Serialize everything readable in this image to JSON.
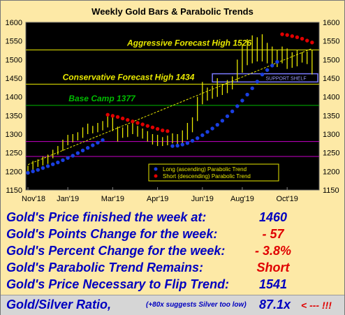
{
  "chart_data": {
    "type": "line",
    "title": "Weekly Gold Bars & Parabolic Trends",
    "ylim": [
      1150,
      1600
    ],
    "yticks": [
      1150,
      1200,
      1250,
      1300,
      1350,
      1400,
      1450,
      1500,
      1550,
      1600
    ],
    "ytick_labels": [
      "1150",
      "1200",
      "1250",
      "1300",
      "1350",
      "1400",
      "1450",
      "1500",
      "1550",
      "1600"
    ],
    "x_tick_labels": [
      "Nov'18",
      "Jan'19",
      "Mar'19",
      "Apr'19",
      "Jun'19",
      "Aug'19",
      "Oct'19"
    ],
    "x_tick_weeks": [
      0,
      8,
      17,
      26,
      35,
      43,
      52
    ],
    "levels": [
      {
        "name": "Aggressive Forecast High 1526",
        "value": 1526,
        "color": "#e8e800"
      },
      {
        "name": "Conservative Forecast High 1434",
        "value": 1434,
        "color": "#e8e800"
      },
      {
        "name": "Base Camp 1377",
        "value": 1377,
        "color": "#00bb00"
      },
      {
        "name": "",
        "value": 1280,
        "color": "#c800c8"
      },
      {
        "name": "",
        "value": 1240,
        "color": "#c800c8"
      }
    ],
    "support_shelf": {
      "label": "SUPPORT SHELF",
      "low": 1440,
      "high": 1462
    },
    "bars": [
      {
        "week": 0,
        "high": 1215,
        "low": 1196
      },
      {
        "week": 1,
        "high": 1228,
        "low": 1204
      },
      {
        "week": 2,
        "high": 1232,
        "low": 1212
      },
      {
        "week": 3,
        "high": 1240,
        "low": 1216
      },
      {
        "week": 4,
        "high": 1245,
        "low": 1220
      },
      {
        "week": 5,
        "high": 1258,
        "low": 1235
      },
      {
        "week": 6,
        "high": 1268,
        "low": 1245
      },
      {
        "week": 7,
        "high": 1285,
        "low": 1255
      },
      {
        "week": 8,
        "high": 1298,
        "low": 1270
      },
      {
        "week": 9,
        "high": 1300,
        "low": 1278
      },
      {
        "week": 10,
        "high": 1305,
        "low": 1283
      },
      {
        "week": 11,
        "high": 1318,
        "low": 1290
      },
      {
        "week": 12,
        "high": 1328,
        "low": 1300
      },
      {
        "week": 13,
        "high": 1322,
        "low": 1302
      },
      {
        "week": 14,
        "high": 1330,
        "low": 1305
      },
      {
        "week": 15,
        "high": 1335,
        "low": 1310
      },
      {
        "week": 16,
        "high": 1352,
        "low": 1318
      },
      {
        "week": 17,
        "high": 1345,
        "low": 1308
      },
      {
        "week": 18,
        "high": 1320,
        "low": 1280
      },
      {
        "week": 19,
        "high": 1318,
        "low": 1290
      },
      {
        "week": 20,
        "high": 1325,
        "low": 1292
      },
      {
        "week": 21,
        "high": 1330,
        "low": 1300
      },
      {
        "week": 22,
        "high": 1322,
        "low": 1293
      },
      {
        "week": 23,
        "high": 1315,
        "low": 1288
      },
      {
        "week": 24,
        "high": 1308,
        "low": 1280
      },
      {
        "week": 25,
        "high": 1300,
        "low": 1272
      },
      {
        "week": 26,
        "high": 1298,
        "low": 1268
      },
      {
        "week": 27,
        "high": 1292,
        "low": 1268
      },
      {
        "week": 28,
        "high": 1296,
        "low": 1270
      },
      {
        "week": 29,
        "high": 1302,
        "low": 1275
      },
      {
        "week": 30,
        "high": 1300,
        "low": 1268
      },
      {
        "week": 31,
        "high": 1310,
        "low": 1275
      },
      {
        "week": 32,
        "high": 1330,
        "low": 1285
      },
      {
        "week": 33,
        "high": 1345,
        "low": 1305
      },
      {
        "week": 34,
        "high": 1400,
        "low": 1335
      },
      {
        "week": 35,
        "high": 1440,
        "low": 1380
      },
      {
        "week": 36,
        "high": 1425,
        "low": 1390
      },
      {
        "week": 37,
        "high": 1430,
        "low": 1395
      },
      {
        "week": 38,
        "high": 1450,
        "low": 1400
      },
      {
        "week": 39,
        "high": 1435,
        "low": 1405
      },
      {
        "week": 40,
        "high": 1445,
        "low": 1410
      },
      {
        "week": 41,
        "high": 1455,
        "low": 1420
      },
      {
        "week": 42,
        "high": 1500,
        "low": 1440
      },
      {
        "week": 43,
        "high": 1540,
        "low": 1465
      },
      {
        "week": 44,
        "high": 1555,
        "low": 1485
      },
      {
        "week": 45,
        "high": 1565,
        "low": 1490
      },
      {
        "week": 46,
        "high": 1560,
        "low": 1495
      },
      {
        "week": 47,
        "high": 1568,
        "low": 1495
      },
      {
        "week": 48,
        "high": 1545,
        "low": 1490
      },
      {
        "week": 49,
        "high": 1535,
        "low": 1488
      },
      {
        "week": 50,
        "high": 1525,
        "low": 1480
      },
      {
        "week": 51,
        "high": 1535,
        "low": 1490
      },
      {
        "week": 52,
        "high": 1530,
        "low": 1475
      },
      {
        "week": 53,
        "high": 1520,
        "low": 1478
      },
      {
        "week": 54,
        "high": 1525,
        "low": 1482
      },
      {
        "week": 55,
        "high": 1520,
        "low": 1492
      },
      {
        "week": 56,
        "high": 1522,
        "low": 1488
      },
      {
        "week": 57,
        "high": 1525,
        "low": 1460
      }
    ],
    "trendline": [
      {
        "week": 0,
        "value": 1218
      },
      {
        "week": 57,
        "value": 1530
      }
    ],
    "series": [
      {
        "name": "Long (ascending) Parabolic Trend",
        "color": "#1a3fe0",
        "points": [
          {
            "week": 0,
            "value": 1196
          },
          {
            "week": 1,
            "value": 1200
          },
          {
            "week": 2,
            "value": 1204
          },
          {
            "week": 3,
            "value": 1209
          },
          {
            "week": 4,
            "value": 1214
          },
          {
            "week": 5,
            "value": 1219
          },
          {
            "week": 6,
            "value": 1224
          },
          {
            "week": 7,
            "value": 1230
          },
          {
            "week": 8,
            "value": 1236
          },
          {
            "week": 9,
            "value": 1242
          },
          {
            "week": 10,
            "value": 1249
          },
          {
            "week": 11,
            "value": 1256
          },
          {
            "week": 12,
            "value": 1263
          },
          {
            "week": 13,
            "value": 1270
          },
          {
            "week": 14,
            "value": 1277
          },
          {
            "week": 15,
            "value": 1284
          },
          {
            "week": 29,
            "value": 1268
          },
          {
            "week": 30,
            "value": 1269
          },
          {
            "week": 31,
            "value": 1272
          },
          {
            "week": 32,
            "value": 1276
          },
          {
            "week": 33,
            "value": 1282
          },
          {
            "week": 34,
            "value": 1289
          },
          {
            "week": 35,
            "value": 1297
          },
          {
            "week": 36,
            "value": 1306
          },
          {
            "week": 37,
            "value": 1315
          },
          {
            "week": 38,
            "value": 1325
          },
          {
            "week": 39,
            "value": 1336
          },
          {
            "week": 40,
            "value": 1348
          },
          {
            "week": 41,
            "value": 1361
          },
          {
            "week": 42,
            "value": 1375
          },
          {
            "week": 43,
            "value": 1390
          },
          {
            "week": 44,
            "value": 1406
          },
          {
            "week": 45,
            "value": 1423
          },
          {
            "week": 46,
            "value": 1441
          },
          {
            "week": 47,
            "value": 1460
          },
          {
            "week": 48,
            "value": 1472
          },
          {
            "week": 49,
            "value": 1484
          },
          {
            "week": 50,
            "value": 1494
          }
        ]
      },
      {
        "name": "Short (descending) Parabolic Trend",
        "color": "#e00000",
        "points": [
          {
            "week": 16,
            "value": 1352
          },
          {
            "week": 17,
            "value": 1349
          },
          {
            "week": 18,
            "value": 1346
          },
          {
            "week": 19,
            "value": 1342
          },
          {
            "week": 20,
            "value": 1338
          },
          {
            "week": 21,
            "value": 1334
          },
          {
            "week": 22,
            "value": 1330
          },
          {
            "week": 23,
            "value": 1326
          },
          {
            "week": 24,
            "value": 1322
          },
          {
            "week": 25,
            "value": 1318
          },
          {
            "week": 26,
            "value": 1314
          },
          {
            "week": 27,
            "value": 1310
          },
          {
            "week": 28,
            "value": 1308
          },
          {
            "week": 51,
            "value": 1568
          },
          {
            "week": 52,
            "value": 1566
          },
          {
            "week": 53,
            "value": 1563
          },
          {
            "week": 54,
            "value": 1560
          },
          {
            "week": 55,
            "value": 1556
          },
          {
            "week": 56,
            "value": 1551
          },
          {
            "week": 57,
            "value": 1546
          }
        ]
      }
    ]
  },
  "stats": [
    {
      "label": "Gold's Price finished the week at:",
      "value": "1460",
      "color": "#0000c0"
    },
    {
      "label": "Gold's Points Change for the week:",
      "value": "- 57",
      "color": "#e00000"
    },
    {
      "label": "Gold's Percent Change for the week:",
      "value": "- 3.8%",
      "color": "#e00000"
    },
    {
      "label": "Gold's Parabolic Trend Remains:",
      "value": "Short",
      "color": "#e00000"
    },
    {
      "label": "Gold's Price Necessary to Flip Trend:",
      "value": "1541",
      "color": "#0000c0"
    }
  ],
  "ratio": {
    "label": "Gold/Silver Ratio,",
    "note": "(+80x suggests Silver too low)",
    "value": "87.1x",
    "arrow": "< --- !!!"
  }
}
